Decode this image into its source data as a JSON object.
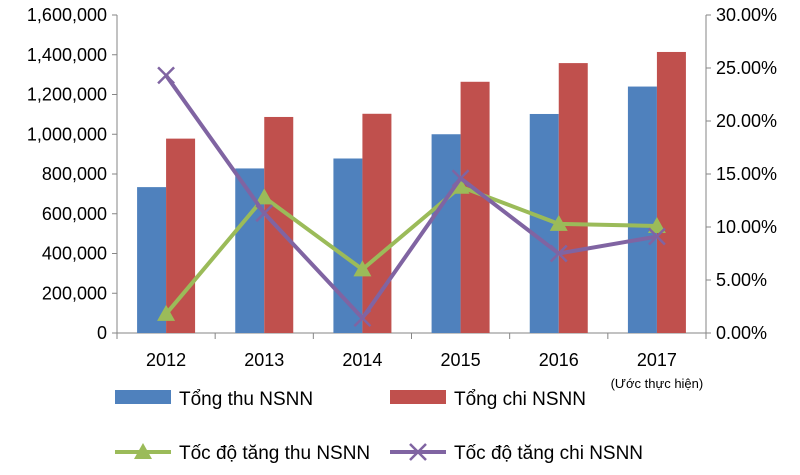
{
  "chart_data": {
    "type": "bar",
    "categories": [
      "2012",
      "2013",
      "2014",
      "2015",
      "2016",
      "2017"
    ],
    "category_note": "(Ước thực hiện)",
    "series": [
      {
        "name": "Tổng thu NSNN",
        "kind": "bar",
        "axis": "left",
        "color": "#4F81BD",
        "values": [
          734000,
          828000,
          878000,
          1000000,
          1102000,
          1240000
        ]
      },
      {
        "name": "Tổng chi NSNN",
        "kind": "bar",
        "axis": "left",
        "color": "#C0504D",
        "values": [
          978000,
          1087000,
          1103000,
          1264000,
          1358000,
          1414000
        ]
      },
      {
        "name": "Tốc độ tăng thu NSNN",
        "kind": "line",
        "marker": "triangle",
        "axis": "right",
        "color": "#9BBB59",
        "values": [
          0.018,
          0.128,
          0.06,
          0.138,
          0.103,
          0.101
        ]
      },
      {
        "name": "Tốc độ tăng chi NSNN",
        "kind": "line",
        "marker": "x",
        "axis": "right",
        "color": "#8064A2",
        "values": [
          0.243,
          0.113,
          0.014,
          0.146,
          0.075,
          0.091
        ]
      }
    ],
    "left_axis": {
      "ylim": [
        0,
        1600000
      ],
      "ticks": [
        "0",
        "200,000",
        "400,000",
        "600,000",
        "800,000",
        "1,000,000",
        "1,200,000",
        "1,400,000",
        "1,600,000"
      ]
    },
    "right_axis": {
      "ylim": [
        0,
        0.3
      ],
      "ticks": [
        "0.00%",
        "5.00%",
        "10.00%",
        "15.00%",
        "20.00%",
        "25.00%",
        "30.00%"
      ]
    },
    "grid": false,
    "legend_position": "bottom"
  }
}
